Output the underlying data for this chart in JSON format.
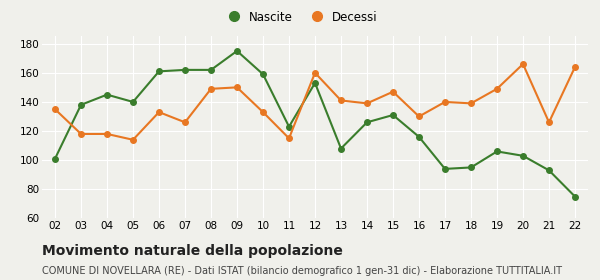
{
  "years": [
    "02",
    "03",
    "04",
    "05",
    "06",
    "07",
    "08",
    "09",
    "10",
    "11",
    "12",
    "13",
    "14",
    "15",
    "16",
    "17",
    "18",
    "19",
    "20",
    "21",
    "22"
  ],
  "nascite": [
    101,
    138,
    145,
    140,
    161,
    162,
    162,
    175,
    159,
    123,
    153,
    108,
    126,
    131,
    116,
    94,
    95,
    106,
    103,
    93,
    75
  ],
  "decessi": [
    135,
    118,
    118,
    114,
    133,
    126,
    149,
    150,
    133,
    115,
    160,
    141,
    139,
    147,
    130,
    140,
    139,
    149,
    166,
    126,
    164
  ],
  "nascite_color": "#3a7d2c",
  "decessi_color": "#e87722",
  "marker_size": 4,
  "line_width": 1.5,
  "title": "Movimento naturale della popolazione",
  "subtitle": "COMUNE DI NOVELLARA (RE) - Dati ISTAT (bilancio demografico 1 gen-31 dic) - Elaborazione TUTTITALIA.IT",
  "ylim": [
    60,
    185
  ],
  "yticks": [
    60,
    80,
    100,
    120,
    140,
    160,
    180
  ],
  "legend_nascite": "Nascite",
  "legend_decessi": "Decessi",
  "background_color": "#f0f0eb",
  "grid_color": "#ffffff",
  "title_fontsize": 10,
  "subtitle_fontsize": 7,
  "tick_fontsize": 7.5,
  "legend_fontsize": 8.5
}
